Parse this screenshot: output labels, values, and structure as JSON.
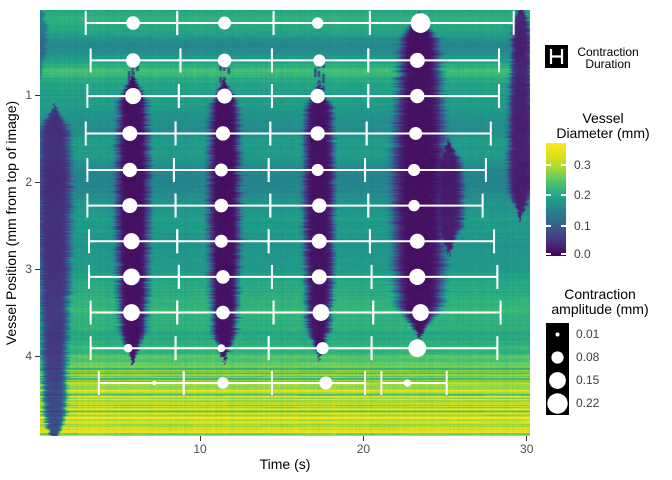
{
  "axes": {
    "x_label": "Time (s)",
    "x_ticks": [
      10,
      20,
      30
    ],
    "x_range": [
      0.2,
      30.2
    ],
    "y_label": "Vessel Position (mm from top of image)",
    "y_ticks": [
      1,
      2,
      3,
      4
    ],
    "y_range": [
      0.02,
      4.92
    ]
  },
  "legends": {
    "duration": {
      "line1": "Contraction",
      "line2": "Duration"
    },
    "diameter": {
      "title_line1": "Vessel",
      "title_line2": "Diameter (mm)",
      "ticks": [
        {
          "label": "0.3",
          "value": 0.3
        },
        {
          "label": "0.2",
          "value": 0.2
        },
        {
          "label": "0.1",
          "value": 0.1
        },
        {
          "label": "0.0",
          "value": 0.0
        }
      ],
      "scale_max": 0.373
    },
    "amplitude": {
      "title_line1": "Contraction",
      "title_line2": "amplitude (mm)",
      "items": [
        {
          "label": "0.01",
          "amp": 0.01
        },
        {
          "label": "0.08",
          "amp": 0.08
        },
        {
          "label": "0.15",
          "amp": 0.15
        },
        {
          "label": "0.22",
          "amp": 0.22
        }
      ]
    }
  },
  "colors": {
    "point": "#ffffff",
    "errorbar": "#ffffff",
    "key_bg": "#000000",
    "tick_text": "#4d4d4d",
    "viridis": [
      "#440154",
      "#482878",
      "#3e4a89",
      "#31688e",
      "#26828e",
      "#1f9e89",
      "#35b779",
      "#6dcd59",
      "#b4de2c",
      "#dce319",
      "#fde725"
    ]
  },
  "chart_data": {
    "type": "heatmap",
    "title": "",
    "xlabel": "Time (s)",
    "ylabel": "Vessel Position (mm from top of image)",
    "value_label": "Vessel Diameter (mm)",
    "x_range_s": [
      0.2,
      30.2
    ],
    "y_range_mm": [
      0.02,
      4.92
    ],
    "diameter_scale_mm": [
      0.0,
      0.373
    ],
    "diameter_profile_mm": [
      [
        0.0,
        0.195
      ],
      [
        0.15,
        0.21
      ],
      [
        0.3,
        0.19
      ],
      [
        0.42,
        0.155
      ],
      [
        0.52,
        0.17
      ],
      [
        0.62,
        0.2
      ],
      [
        0.72,
        0.235
      ],
      [
        0.82,
        0.2
      ],
      [
        0.95,
        0.185
      ],
      [
        1.1,
        0.185
      ],
      [
        1.25,
        0.17
      ],
      [
        1.4,
        0.165
      ],
      [
        1.55,
        0.185
      ],
      [
        1.7,
        0.185
      ],
      [
        1.85,
        0.16
      ],
      [
        2.0,
        0.15
      ],
      [
        2.15,
        0.165
      ],
      [
        2.3,
        0.175
      ],
      [
        2.45,
        0.185
      ],
      [
        2.6,
        0.18
      ],
      [
        2.75,
        0.175
      ],
      [
        2.9,
        0.18
      ],
      [
        3.05,
        0.19
      ],
      [
        3.2,
        0.2
      ],
      [
        3.35,
        0.215
      ],
      [
        3.5,
        0.225
      ],
      [
        3.65,
        0.21
      ],
      [
        3.8,
        0.2
      ],
      [
        3.95,
        0.23
      ],
      [
        4.1,
        0.26
      ],
      [
        4.25,
        0.27
      ],
      [
        4.4,
        0.29
      ],
      [
        4.55,
        0.3
      ],
      [
        4.7,
        0.3
      ],
      [
        4.82,
        0.315
      ],
      [
        4.92,
        0.28
      ]
    ],
    "contraction_bands": [
      {
        "t": 0.2,
        "hw": 0.55,
        "top": 0.0,
        "bottom": 0.65,
        "s": 0.35
      },
      {
        "t": 1.05,
        "hw": 1.05,
        "top": 1.2,
        "bottom": 4.92,
        "s": 0.78
      },
      {
        "t": 5.85,
        "hw": 1.05,
        "top": 0.85,
        "bottom": 3.95,
        "s": 0.97,
        "stem_top": 0.45
      },
      {
        "t": 11.45,
        "hw": 1.0,
        "top": 0.9,
        "bottom": 3.95,
        "s": 0.97,
        "stem_top": 0.5
      },
      {
        "t": 17.25,
        "hw": 0.95,
        "top": 0.95,
        "bottom": 3.9,
        "s": 0.96,
        "stem_top": 0.5
      },
      {
        "t": 23.4,
        "hw": 1.65,
        "top": 0.15,
        "bottom": 3.65,
        "s": 0.97
      },
      {
        "t": 25.2,
        "hw": 0.9,
        "top": 1.6,
        "bottom": 2.7,
        "s": 0.9
      },
      {
        "t": 29.6,
        "hw": 0.8,
        "top": 0.0,
        "bottom": 2.3,
        "s": 0.88
      }
    ],
    "points_t_pos_amp_tstart_tend": [
      [
        5.9,
        0.17,
        0.1,
        3.0,
        8.6
      ],
      [
        11.5,
        0.17,
        0.09,
        8.6,
        14.5
      ],
      [
        17.2,
        0.17,
        0.07,
        14.5,
        20.4
      ],
      [
        23.5,
        0.17,
        0.21,
        20.4,
        29.2
      ],
      [
        5.9,
        0.6,
        0.11,
        3.3,
        8.8
      ],
      [
        11.5,
        0.6,
        0.1,
        8.8,
        14.4
      ],
      [
        17.3,
        0.6,
        0.08,
        14.4,
        20.3
      ],
      [
        23.3,
        0.6,
        0.12,
        20.3,
        28.3
      ],
      [
        5.9,
        1.01,
        0.14,
        3.1,
        8.7
      ],
      [
        11.5,
        1.01,
        0.12,
        8.7,
        14.4
      ],
      [
        17.2,
        1.01,
        0.11,
        14.4,
        20.3
      ],
      [
        23.3,
        1.01,
        0.11,
        20.3,
        28.3
      ],
      [
        5.7,
        1.44,
        0.12,
        3.0,
        8.5
      ],
      [
        11.4,
        1.44,
        0.11,
        8.5,
        14.3
      ],
      [
        17.2,
        1.44,
        0.11,
        14.3,
        20.2
      ],
      [
        23.2,
        1.44,
        0.09,
        20.2,
        27.8
      ],
      [
        5.7,
        1.86,
        0.11,
        3.1,
        8.4
      ],
      [
        11.3,
        1.86,
        0.09,
        8.4,
        14.2
      ],
      [
        17.2,
        1.86,
        0.08,
        14.2,
        20.1
      ],
      [
        23.1,
        1.86,
        0.08,
        20.1,
        27.5
      ],
      [
        5.7,
        2.27,
        0.12,
        3.1,
        8.5
      ],
      [
        11.3,
        2.27,
        0.1,
        8.5,
        14.3
      ],
      [
        17.3,
        2.27,
        0.11,
        14.3,
        20.3
      ],
      [
        23.1,
        2.27,
        0.07,
        20.3,
        27.3
      ],
      [
        5.8,
        2.68,
        0.14,
        3.2,
        8.6
      ],
      [
        11.3,
        2.68,
        0.09,
        8.6,
        14.2
      ],
      [
        17.3,
        2.68,
        0.12,
        14.2,
        20.4
      ],
      [
        23.3,
        2.68,
        0.12,
        20.4,
        28.0
      ],
      [
        5.8,
        3.09,
        0.15,
        3.2,
        8.7
      ],
      [
        11.4,
        3.09,
        0.1,
        8.7,
        14.4
      ],
      [
        17.3,
        3.09,
        0.12,
        14.4,
        20.5
      ],
      [
        23.3,
        3.09,
        0.14,
        20.5,
        28.2
      ],
      [
        5.8,
        3.5,
        0.15,
        3.3,
        8.6
      ],
      [
        11.4,
        3.5,
        0.1,
        8.6,
        14.5
      ],
      [
        17.4,
        3.5,
        0.15,
        14.5,
        20.6
      ],
      [
        23.5,
        3.5,
        0.15,
        20.6,
        28.4
      ],
      [
        5.6,
        3.91,
        0.04,
        3.3,
        8.5
      ],
      [
        11.3,
        3.91,
        0.035,
        8.5,
        14.2
      ],
      [
        17.5,
        3.91,
        0.08,
        14.2,
        20.5
      ],
      [
        23.3,
        3.91,
        0.17,
        20.5,
        28.2
      ],
      [
        7.2,
        4.31,
        0.012,
        3.8,
        9.0
      ],
      [
        11.4,
        4.31,
        0.07,
        9.0,
        14.4
      ],
      [
        17.7,
        4.31,
        0.09,
        14.4,
        20.1
      ],
      [
        22.7,
        4.31,
        0.03,
        21.1,
        25.1
      ]
    ],
    "amp_radius_map": {
      "formula": "r_px = sqrt(4 + 475*(amp_mm - 0.01))"
    }
  }
}
